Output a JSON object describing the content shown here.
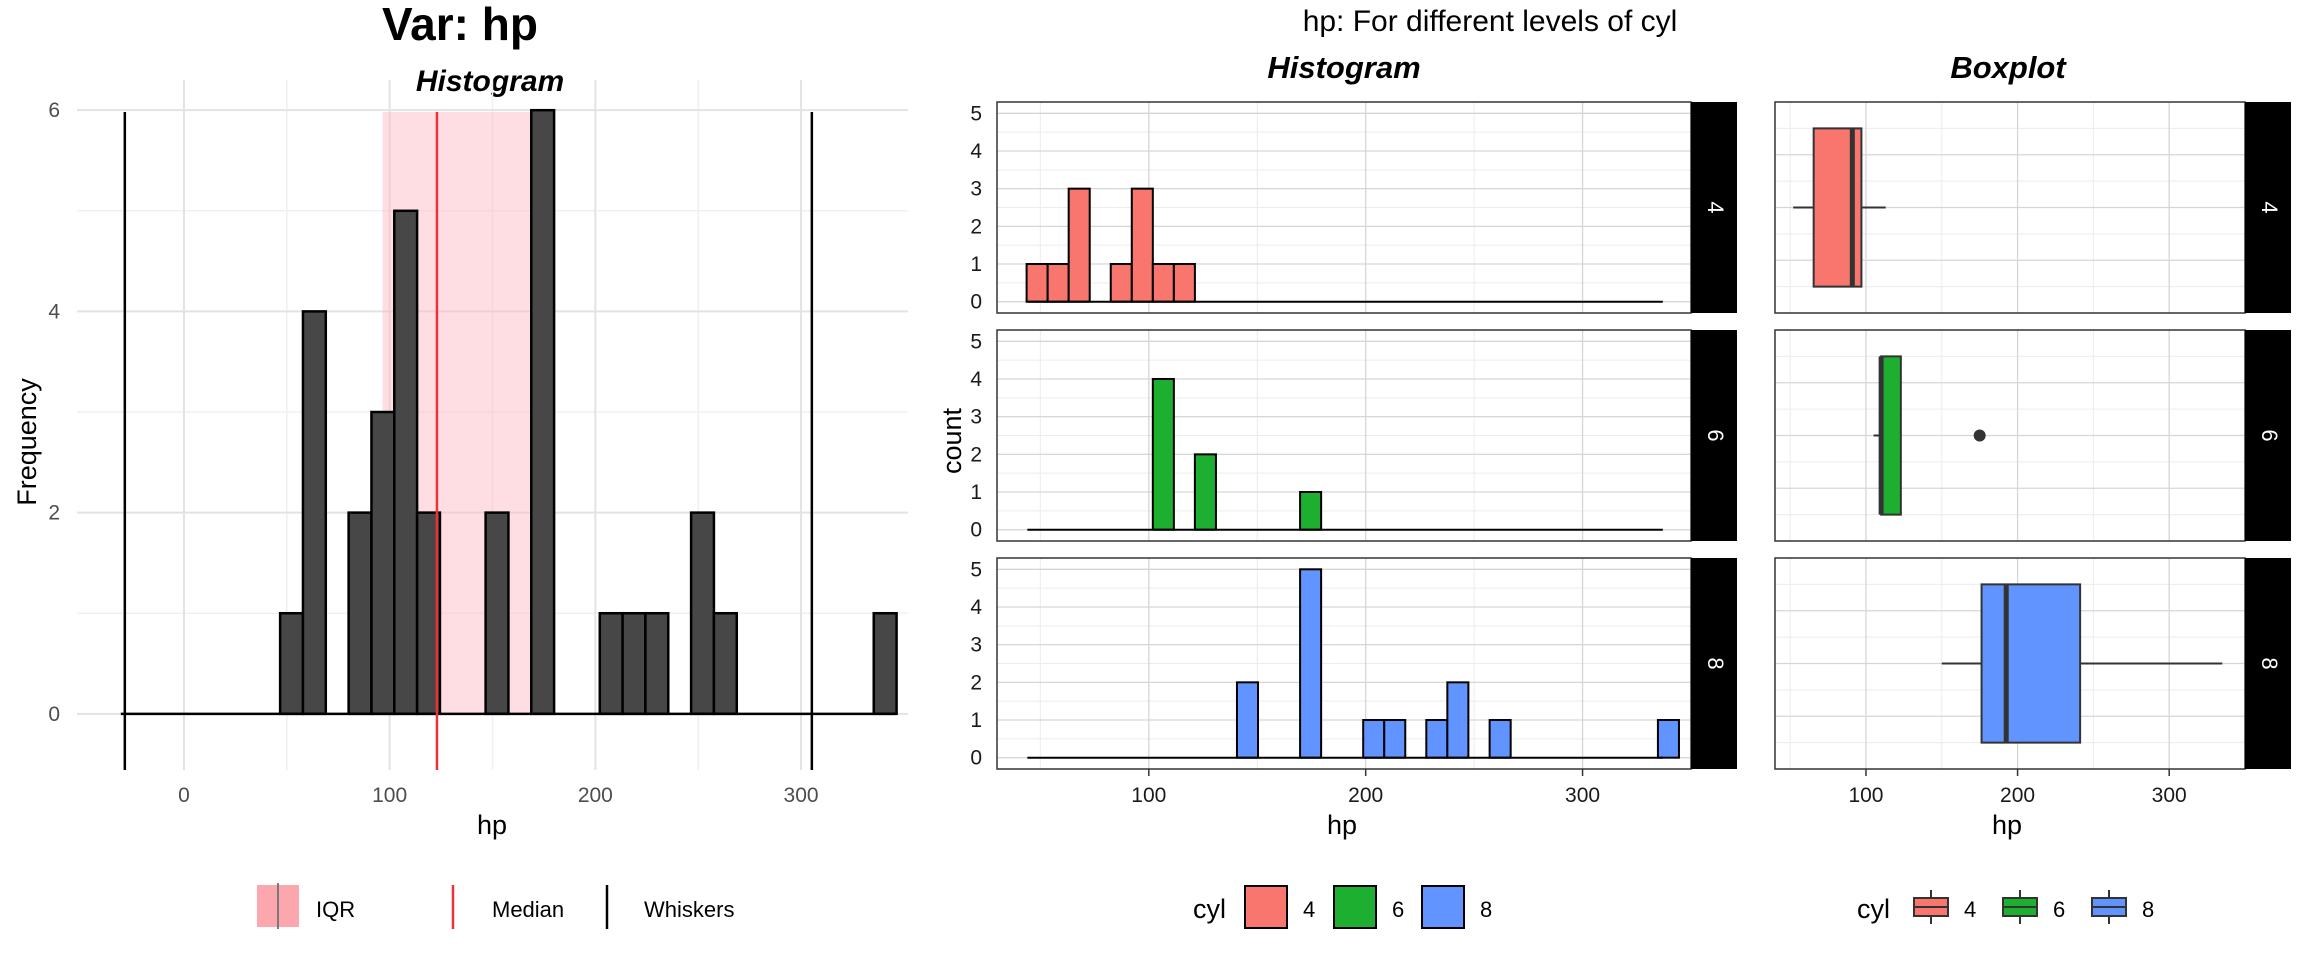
{
  "left_panel": {
    "main_title": "Var: hp",
    "subtitle": "Histogram",
    "xlabel": "hp",
    "ylabel": "Frequency"
  },
  "right_panel": {
    "title": "hp: For different levels of cyl",
    "histogram_title": "Histogram",
    "boxplot_title": "Boxplot",
    "hist_xlabel": "hp",
    "hist_ylabel": "count",
    "box_xlabel": "hp",
    "legend_title_hist": "cyl",
    "legend_title_box": "cyl"
  },
  "legend_left": {
    "items": [
      {
        "label": "IQR",
        "kind": "iqr"
      },
      {
        "label": "Median",
        "kind": "median"
      },
      {
        "label": "Whiskers",
        "kind": "whiskers"
      }
    ]
  },
  "colors": {
    "bar_dark": "#474747",
    "iqr_fill": "#FFB6C1",
    "median": "#E8333A",
    "whisker": "#000000",
    "cyl4": "#F8766D",
    "cyl6": "#1DB030",
    "cyl8": "#6194FF",
    "strip_bg": "#000000",
    "strip_text": "#FFFFFF"
  },
  "chart_data": [
    {
      "type": "bar",
      "name": "overall-histogram",
      "title": "Var: hp",
      "subtitle": "Histogram",
      "xlabel": "hp",
      "ylabel": "Frequency",
      "bin_width": 11.1,
      "bin_centers": [
        52.3,
        63.4,
        85.6,
        96.7,
        107.8,
        118.9,
        130.0,
        152.2,
        174.4,
        207.7,
        218.8,
        229.9,
        252.1,
        263.2,
        340.9
      ],
      "counts": [
        1,
        4,
        2,
        3,
        5,
        2,
        0,
        2,
        6,
        1,
        1,
        1,
        2,
        1,
        1
      ],
      "xlim": [
        -52,
        352
      ],
      "ylim": [
        0,
        6.3
      ],
      "xticks": [
        0,
        100,
        200,
        300
      ],
      "yticks": [
        0,
        2,
        4,
        6
      ],
      "iqr": [
        96.5,
        180
      ],
      "median": 123,
      "whiskers": [
        -28.75,
        305.25
      ],
      "grid": true
    },
    {
      "type": "bar",
      "name": "faceted-histogram",
      "facet_by": "cyl",
      "xlabel": "hp",
      "ylabel": "count",
      "bin_width": 9.7,
      "xlim": [
        30,
        350
      ],
      "ylim": [
        0,
        5.3
      ],
      "xticks": [
        100,
        200,
        300
      ],
      "yticks": [
        0,
        1,
        2,
        3,
        4,
        5
      ],
      "baseline": [
        44,
        337
      ],
      "facets": [
        {
          "level": "4",
          "bin_centers": [
            48.5,
            58.2,
            67.9,
            87.3,
            97.0,
            106.7,
            116.4
          ],
          "counts": [
            1,
            1,
            3,
            1,
            3,
            1,
            1
          ]
        },
        {
          "level": "6",
          "bin_centers": [
            106.7,
            126.1,
            174.6
          ],
          "counts": [
            4,
            2,
            1
          ]
        },
        {
          "level": "8",
          "bin_centers": [
            145.5,
            174.6,
            203.7,
            213.4,
            232.8,
            242.5,
            262.0,
            339.6
          ],
          "counts": [
            2,
            5,
            1,
            1,
            1,
            2,
            1,
            1
          ]
        }
      ]
    },
    {
      "type": "boxplot",
      "name": "faceted-boxplot",
      "facet_by": "cyl",
      "xlabel": "hp",
      "xlim": [
        40,
        350
      ],
      "xticks": [
        100,
        200,
        300
      ],
      "facets": [
        {
          "level": "4",
          "min": 52,
          "q1": 65.5,
          "median": 91,
          "q3": 97,
          "max": 113,
          "outliers": []
        },
        {
          "level": "6",
          "min": 105,
          "q1": 110,
          "median": 110,
          "q3": 123,
          "max": 123,
          "outliers": [
            175
          ]
        },
        {
          "level": "8",
          "min": 150,
          "q1": 176.25,
          "median": 192.5,
          "q3": 241.25,
          "max": 335,
          "outliers": []
        }
      ]
    }
  ]
}
